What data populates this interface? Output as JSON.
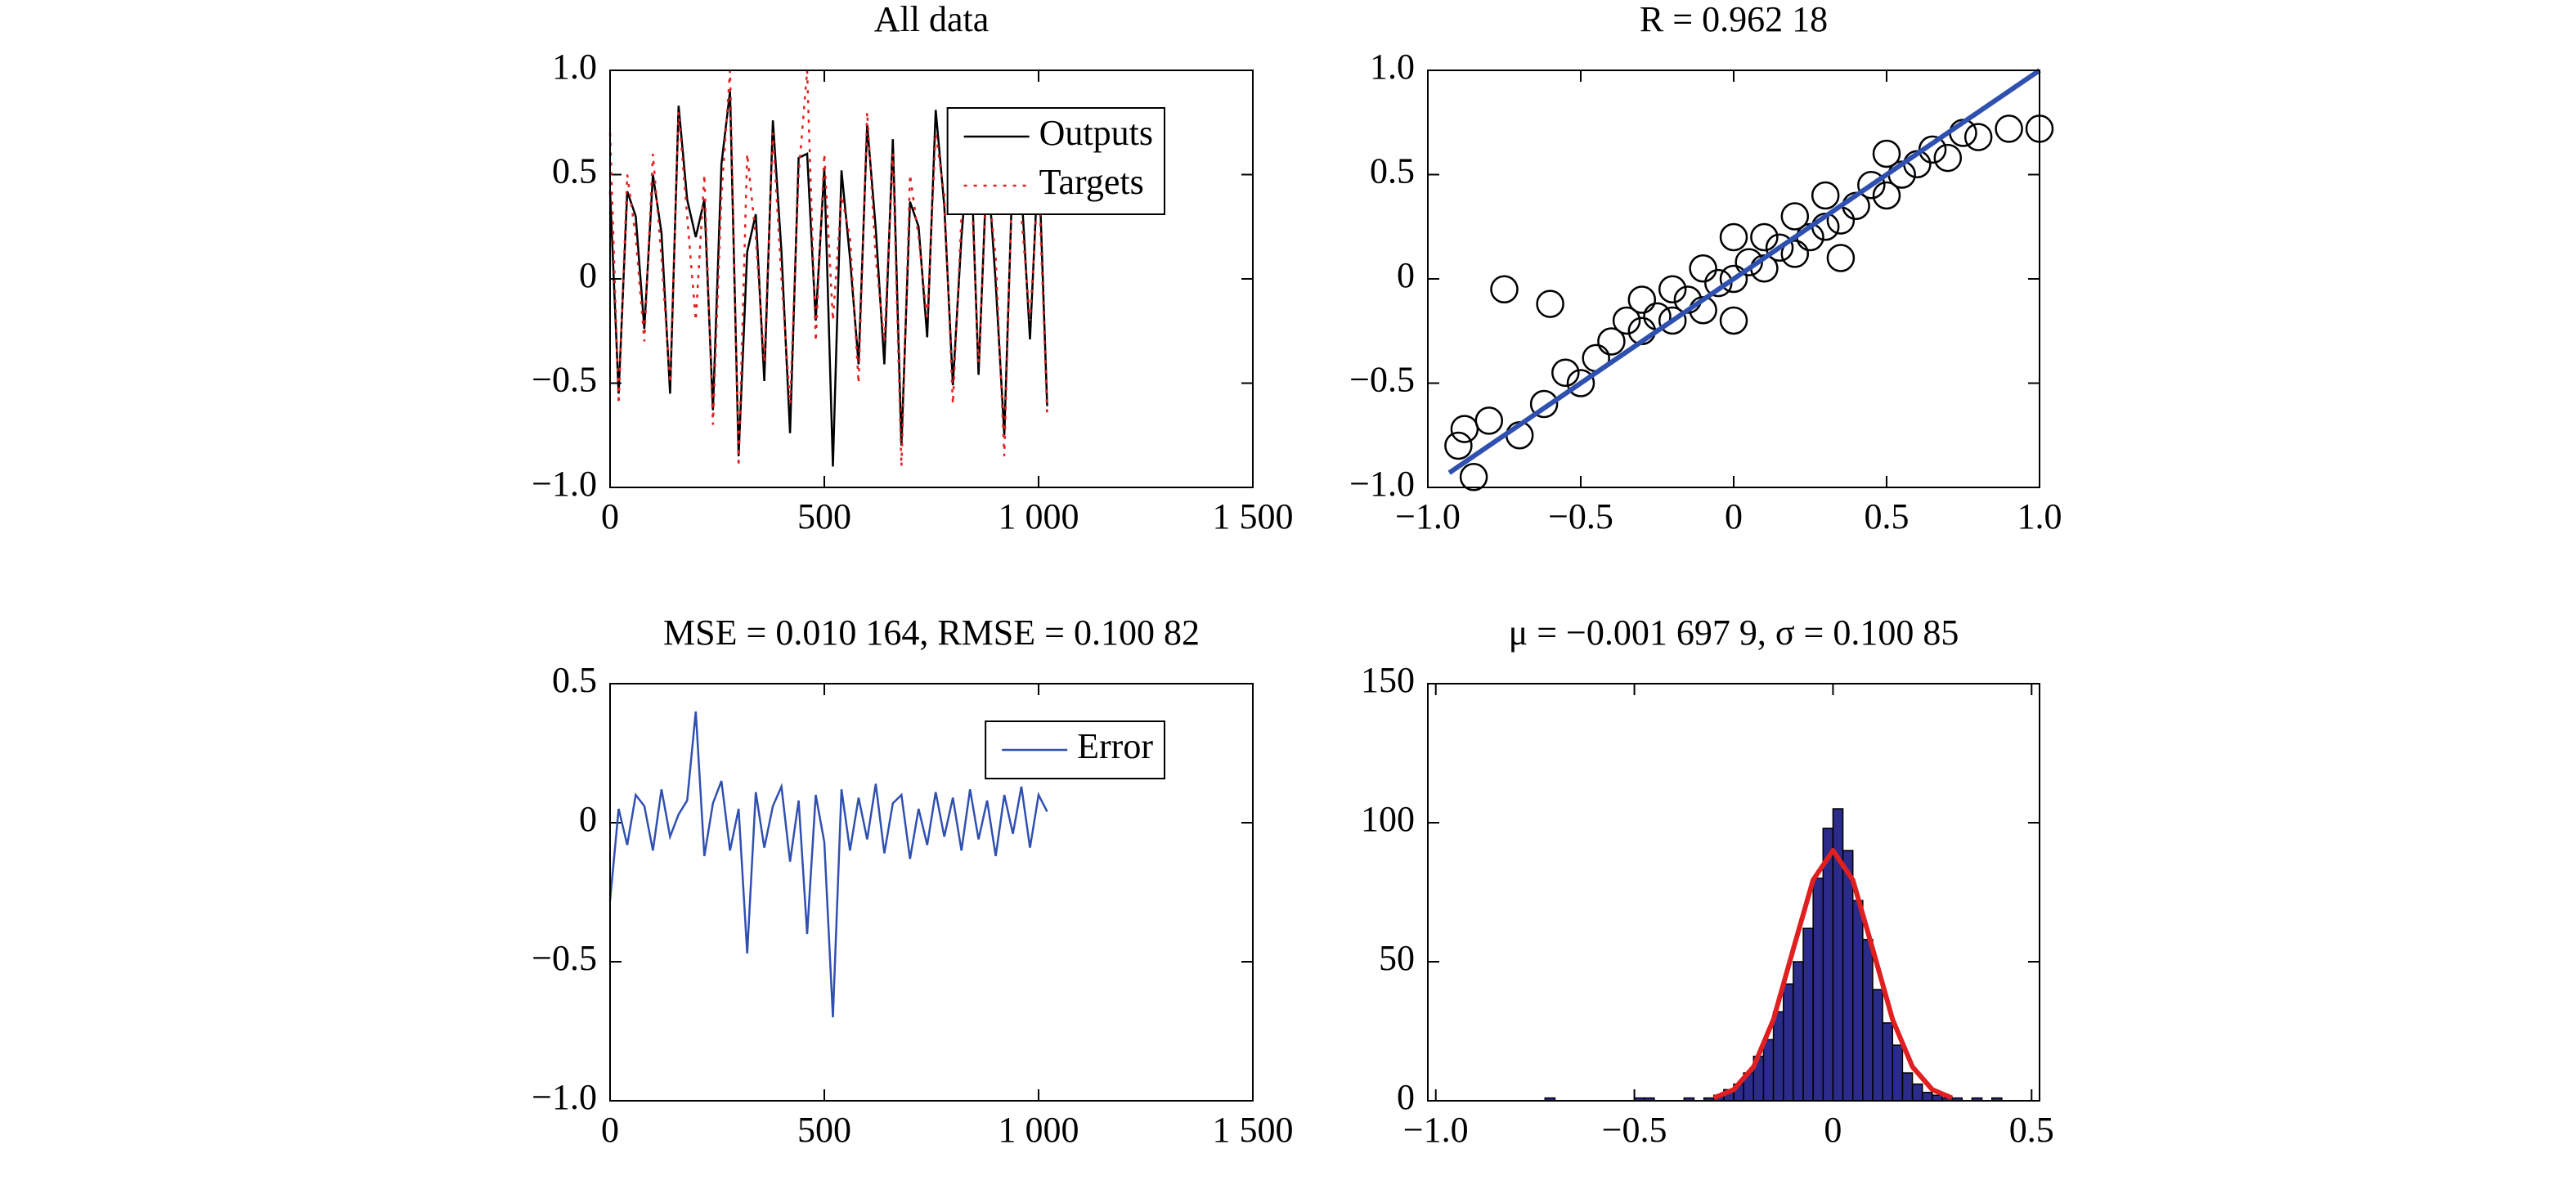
{
  "chart_data": [
    {
      "type": "line",
      "title": "All data",
      "x": [
        0,
        20,
        40,
        60,
        80,
        100,
        120,
        140,
        160,
        180,
        200,
        220,
        240,
        260,
        280,
        300,
        320,
        340,
        360,
        380,
        400,
        420,
        440,
        460,
        480,
        500,
        520,
        540,
        560,
        580,
        600,
        620,
        640,
        660,
        680,
        700,
        720,
        740,
        760,
        780,
        800,
        820,
        840,
        860,
        880,
        900,
        920,
        940,
        960,
        980,
        1000,
        1020
      ],
      "series": [
        {
          "name": "Outputs",
          "color": "#000000",
          "linestyle": "solid",
          "values": [
            0.42,
            -0.55,
            0.42,
            0.3,
            -0.24,
            0.5,
            0.22,
            -0.55,
            0.83,
            0.38,
            0.2,
            0.38,
            -0.63,
            0.55,
            0.9,
            -0.85,
            0.13,
            0.31,
            -0.49,
            0.76,
            0.13,
            -0.74,
            0.58,
            0.6,
            -0.2,
            0.53,
            -0.9,
            0.52,
            0.1,
            -0.41,
            0.74,
            0.24,
            -0.41,
            0.67,
            -0.8,
            0.37,
            0.25,
            -0.28,
            0.81,
            0.35,
            -0.51,
            0.2,
            0.72,
            -0.46,
            0.58,
            -0.02,
            -0.75,
            0.56,
            0.43,
            -0.29,
            0.6,
            -0.61
          ]
        },
        {
          "name": "Targets",
          "color": "#e02020",
          "linestyle": "dotted",
          "values": [
            0.7,
            -0.6,
            0.5,
            0.2,
            -0.3,
            0.6,
            0.1,
            -0.5,
            0.8,
            0.3,
            -0.2,
            0.5,
            -0.7,
            0.4,
            1.0,
            -0.9,
            0.6,
            0.2,
            -0.4,
            0.7,
            0.0,
            -0.6,
            0.5,
            1.0,
            -0.3,
            0.6,
            -0.2,
            0.4,
            0.2,
            -0.5,
            0.8,
            0.1,
            -0.3,
            0.6,
            -0.9,
            0.5,
            0.2,
            -0.2,
            0.7,
            0.4,
            -0.6,
            0.3,
            0.6,
            -0.4,
            0.5,
            0.1,
            -0.85,
            0.6,
            0.3,
            -0.2,
            0.5,
            -0.65
          ]
        }
      ],
      "xlim": [
        0,
        1500
      ],
      "xticks": [
        0,
        500,
        {
          "value": 1000,
          "label": "1 000"
        },
        {
          "value": 1500,
          "label": "1 500"
        }
      ],
      "ylim": [
        -1,
        1
      ],
      "yticks": [
        {
          "value": 1,
          "label": "1.0"
        },
        0.5,
        0,
        {
          "value": -0.5,
          "label": "−0.5"
        },
        {
          "value": -1,
          "label": "−1.0"
        }
      ],
      "legend": "upper right"
    },
    {
      "type": "scatter",
      "title": "R = 0.962 18",
      "series": [
        {
          "color": "#000000",
          "marker": "circle",
          "x": [
            -0.9,
            -0.85,
            -0.88,
            -0.75,
            -0.6,
            -0.8,
            -0.7,
            -0.5,
            -0.45,
            -0.4,
            -0.35,
            -0.3,
            -0.3,
            -0.25,
            -0.2,
            -0.2,
            -0.15,
            -0.1,
            -0.1,
            -0.05,
            0,
            0,
            0.05,
            0.1,
            0.1,
            0.15,
            0.2,
            0.2,
            0.25,
            0.3,
            0.3,
            0.35,
            0.4,
            0.45,
            0.5,
            0.5,
            0.55,
            0.6,
            0.65,
            0.7,
            0.75,
            0.8,
            0.9,
            1.0,
            -0.55,
            -0.62,
            0.35,
            0.0
          ],
          "values": [
            -0.8,
            -0.95,
            -0.72,
            -0.05,
            -0.12,
            -0.68,
            -0.75,
            -0.5,
            -0.38,
            -0.3,
            -0.2,
            -0.25,
            -0.1,
            -0.18,
            -0.2,
            -0.05,
            -0.1,
            -0.15,
            0.05,
            -0.02,
            0,
            -0.2,
            0.08,
            0.05,
            0.2,
            0.15,
            0.12,
            0.3,
            0.2,
            0.25,
            0.4,
            0.28,
            0.35,
            0.45,
            0.4,
            0.6,
            0.5,
            0.55,
            0.62,
            0.58,
            0.7,
            0.68,
            0.72,
            0.72,
            -0.45,
            -0.6,
            0.1,
            0.2
          ]
        }
      ],
      "fit_line": {
        "color": "#3050b0",
        "x": [
          -0.93,
          1
        ],
        "values": [
          -0.93,
          1
        ]
      },
      "xlim": [
        -1,
        1
      ],
      "xticks": [
        {
          "value": -1,
          "label": "−1.0"
        },
        {
          "value": -0.5,
          "label": "−0.5"
        },
        0,
        0.5,
        {
          "value": 1,
          "label": "1.0"
        }
      ],
      "ylim": [
        -1,
        1
      ],
      "yticks": [
        {
          "value": 1,
          "label": "1.0"
        },
        0.5,
        0,
        {
          "value": -0.5,
          "label": "−0.5"
        },
        {
          "value": -1,
          "label": "−1.0"
        }
      ]
    },
    {
      "type": "line",
      "title": "MSE = 0.010 164, RMSE = 0.100 82",
      "x": [
        0,
        20,
        40,
        60,
        80,
        100,
        120,
        140,
        160,
        180,
        200,
        220,
        240,
        260,
        280,
        300,
        320,
        340,
        360,
        380,
        400,
        420,
        440,
        460,
        480,
        500,
        520,
        540,
        560,
        580,
        600,
        620,
        640,
        660,
        680,
        700,
        720,
        740,
        760,
        780,
        800,
        820,
        840,
        860,
        880,
        900,
        920,
        940,
        960,
        980,
        1000,
        1020
      ],
      "series": [
        {
          "name": "Error",
          "color": "#3050b0",
          "linestyle": "solid",
          "values": [
            -0.28,
            0.05,
            -0.08,
            0.1,
            0.06,
            -0.1,
            0.12,
            -0.05,
            0.03,
            0.08,
            0.4,
            -0.12,
            0.07,
            0.15,
            -0.1,
            0.05,
            -0.47,
            0.11,
            -0.09,
            0.06,
            0.13,
            -0.14,
            0.08,
            -0.4,
            0.1,
            -0.07,
            -0.7,
            0.12,
            -0.1,
            0.09,
            -0.06,
            0.14,
            -0.11,
            0.07,
            0.1,
            -0.13,
            0.05,
            -0.08,
            0.11,
            -0.05,
            0.09,
            -0.1,
            0.12,
            -0.06,
            0.08,
            -0.12,
            0.1,
            -0.04,
            0.13,
            -0.09,
            0.1,
            0.04
          ]
        }
      ],
      "xlim": [
        0,
        1500
      ],
      "xticks": [
        0,
        500,
        {
          "value": 1000,
          "label": "1 000"
        },
        {
          "value": 1500,
          "label": "1 500"
        }
      ],
      "ylim": [
        -1,
        0.5
      ],
      "yticks": [
        0.5,
        0,
        {
          "value": -0.5,
          "label": "−0.5"
        },
        {
          "value": -1,
          "label": "−1.0"
        }
      ],
      "legend": "upper right"
    },
    {
      "type": "histogram",
      "title": "μ = −0.001 697 9, σ = 0.100 85",
      "bins": [
        -0.725,
        -0.7,
        -0.675,
        -0.65,
        -0.625,
        -0.6,
        -0.575,
        -0.55,
        -0.525,
        -0.5,
        -0.475,
        -0.45,
        -0.425,
        -0.4,
        -0.375,
        -0.35,
        -0.325,
        -0.3,
        -0.275,
        -0.25,
        -0.225,
        -0.2,
        -0.175,
        -0.15,
        -0.125,
        -0.1,
        -0.075,
        -0.05,
        -0.025,
        0,
        0.025,
        0.05,
        0.075,
        0.1,
        0.125,
        0.15,
        0.175,
        0.2,
        0.225,
        0.25,
        0.275,
        0.3,
        0.325,
        0.35,
        0.375,
        0.4,
        0.425
      ],
      "values": [
        1,
        0,
        0,
        0,
        0,
        0,
        0,
        0,
        0,
        1,
        1,
        0,
        0,
        0,
        1,
        0,
        1,
        2,
        4,
        6,
        10,
        16,
        22,
        32,
        42,
        50,
        62,
        80,
        98,
        105,
        90,
        72,
        58,
        40,
        28,
        20,
        10,
        6,
        3,
        2,
        1,
        1,
        0,
        1,
        0,
        1
      ],
      "color": "#2b2b8a",
      "fit": {
        "color": "#e02020",
        "x": [
          -0.3,
          -0.25,
          -0.2,
          -0.15,
          -0.1,
          -0.05,
          0,
          0.05,
          0.1,
          0.15,
          0.2,
          0.25,
          0.3
        ],
        "values": [
          1.0,
          4.0,
          12.2,
          29.2,
          54.6,
          79.4,
          90,
          79.4,
          54.6,
          29.2,
          12.2,
          4.0,
          1.0
        ]
      },
      "xlim": [
        -1.02,
        0.52
      ],
      "xticks": [
        {
          "value": -1,
          "label": "−1.0"
        },
        {
          "value": -0.5,
          "label": "−0.5"
        },
        0,
        0.5
      ],
      "ylim": [
        0,
        150
      ],
      "yticks": [
        150,
        100,
        50,
        0
      ]
    }
  ]
}
